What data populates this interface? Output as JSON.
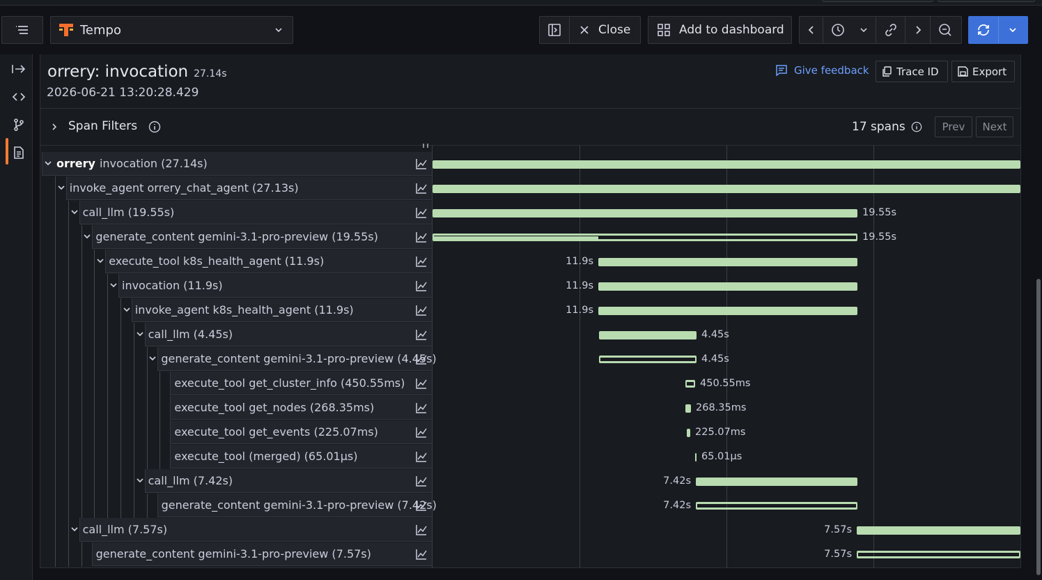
{
  "toolbar": {
    "datasource": "Tempo",
    "close_label": "Close",
    "add_dashboard_label": "Add to dashboard"
  },
  "trace": {
    "service": "orrery",
    "operation": "invocation",
    "title": "orrery: invocation",
    "duration": "27.14s",
    "start": "2026-06-21 13:20:28.429"
  },
  "header": {
    "feedback_label": "Give feedback",
    "trace_id_label": "Trace ID",
    "export_label": "Export"
  },
  "filters": {
    "label": "Span Filters",
    "spans_count": "17 spans",
    "prev_label": "Prev",
    "next_label": "Next"
  },
  "colors": {
    "accent": "#3d71d9",
    "bar": "#b8dbb0",
    "active_nav": "#ff7a33",
    "link": "#6e9fff"
  },
  "spans": [
    {
      "depth": 0,
      "expandable": true,
      "service": "orrery",
      "name": "invocation (27.14s)",
      "label": ""
    },
    {
      "depth": 1,
      "expandable": true,
      "service": "",
      "name": "invoke_agent orrery_chat_agent (27.13s)",
      "label": ""
    },
    {
      "depth": 2,
      "expandable": true,
      "service": "",
      "name": "call_llm (19.55s)",
      "label": "19.55s"
    },
    {
      "depth": 3,
      "expandable": true,
      "service": "",
      "name": "generate_content gemini-3.1-pro-preview (19.55s)",
      "label": "19.55s"
    },
    {
      "depth": 4,
      "expandable": true,
      "service": "",
      "name": "execute_tool k8s_health_agent (11.9s)",
      "label": "11.9s"
    },
    {
      "depth": 5,
      "expandable": true,
      "service": "",
      "name": "invocation (11.9s)",
      "label": "11.9s"
    },
    {
      "depth": 6,
      "expandable": true,
      "service": "",
      "name": "invoke_agent k8s_health_agent (11.9s)",
      "label": "11.9s"
    },
    {
      "depth": 7,
      "expandable": true,
      "service": "",
      "name": "call_llm (4.45s)",
      "label": "4.45s"
    },
    {
      "depth": 8,
      "expandable": true,
      "service": "",
      "name": "generate_content gemini-3.1-pro-preview (4.45s)",
      "label": "4.45s"
    },
    {
      "depth": 9,
      "expandable": false,
      "service": "",
      "name": "execute_tool get_cluster_info (450.55ms)",
      "label": "450.55ms"
    },
    {
      "depth": 9,
      "expandable": false,
      "service": "",
      "name": "execute_tool get_nodes (268.35ms)",
      "label": "268.35ms"
    },
    {
      "depth": 9,
      "expandable": false,
      "service": "",
      "name": "execute_tool get_events (225.07ms)",
      "label": "225.07ms"
    },
    {
      "depth": 9,
      "expandable": false,
      "service": "",
      "name": "execute_tool (merged) (65.01µs)",
      "label": "65.01µs"
    },
    {
      "depth": 7,
      "expandable": true,
      "service": "",
      "name": "call_llm (7.42s)",
      "label": "7.42s"
    },
    {
      "depth": 8,
      "expandable": false,
      "service": "",
      "name": "generate_content gemini-3.1-pro-preview (7.42s)",
      "label": "7.42s"
    },
    {
      "depth": 2,
      "expandable": true,
      "service": "",
      "name": "call_llm (7.57s)",
      "label": "7.57s"
    },
    {
      "depth": 3,
      "expandable": false,
      "service": "",
      "name": "generate_content gemini-3.1-pro-preview (7.57s)",
      "label": "7.57s"
    }
  ]
}
